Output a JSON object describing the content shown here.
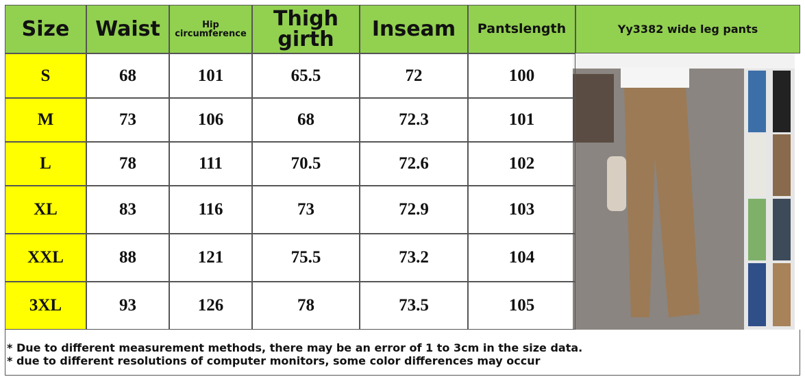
{
  "table": {
    "header": [
      "Size",
      "Waist",
      "Hip circumference",
      "Thigh girth",
      "Inseam",
      "Pantslength"
    ],
    "rows": [
      [
        "S",
        68,
        101,
        65.5,
        72,
        100
      ],
      [
        "M",
        73,
        106,
        68,
        72.3,
        101
      ],
      [
        "L",
        78,
        111,
        70.5,
        72.6,
        102
      ],
      [
        "XL",
        83,
        116,
        73,
        72.9,
        103
      ],
      [
        "XXL",
        88,
        121,
        75.5,
        73.2,
        104
      ],
      [
        "3XL",
        93,
        126,
        78,
        73.5,
        105
      ]
    ]
  },
  "product": {
    "title": "Yy3382 wide leg pants"
  },
  "notes": [
    "* Due to different measurement methods, there may be an error of 1 to 3cm in the size data.",
    "* due to different resolutions of computer monitors, some color differences may occur"
  ]
}
